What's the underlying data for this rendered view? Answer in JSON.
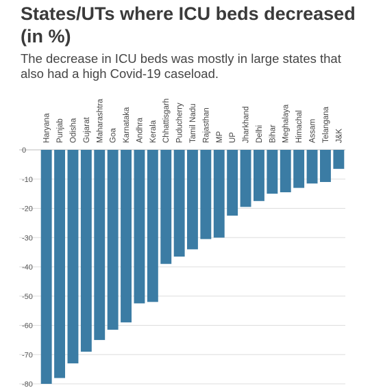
{
  "header": {
    "title": "States/UTs where ICU beds decreased (in %)",
    "subtitle": "The decrease in ICU beds was mostly in large states that also had a high Covid-19 caseload."
  },
  "colors": {
    "bar": "#3b7ca4",
    "grid": "#dddddd",
    "zero_line": "#bbbbbb"
  },
  "chart_data": {
    "type": "bar",
    "categories": [
      "Haryana",
      "Punjab",
      "Odisha",
      "Gujarat",
      "Maharashtra",
      "Goa",
      "Karnataka",
      "Andhra",
      "Kerala",
      "Chhattisgarh",
      "Puducherry",
      "Tamil Nadu",
      "Rajasthan",
      "MP",
      "UP",
      "Jharkhand",
      "Delhi",
      "Bihar",
      "Meghalaya",
      "Himachal",
      "Assam",
      "Telangana",
      "J&K"
    ],
    "values": [
      -80,
      -78,
      -73,
      -69,
      -65,
      -61.5,
      -59,
      -52.5,
      -52,
      -39,
      -36.5,
      -34,
      -30.5,
      -30,
      -22.5,
      -19.5,
      -17.5,
      -15,
      -14.5,
      -13,
      -11.5,
      -11,
      -6.5
    ],
    "yticks": [
      0,
      -10,
      -20,
      -30,
      -40,
      -50,
      -60,
      -70,
      -80
    ],
    "ylim": [
      -80,
      0
    ],
    "grid": true,
    "title": "States/UTs where ICU beds decreased (in %)",
    "subtitle": "The decrease in ICU beds was mostly in large states that also had a high Covid-19 caseload.",
    "xlabel": "",
    "ylabel": ""
  }
}
